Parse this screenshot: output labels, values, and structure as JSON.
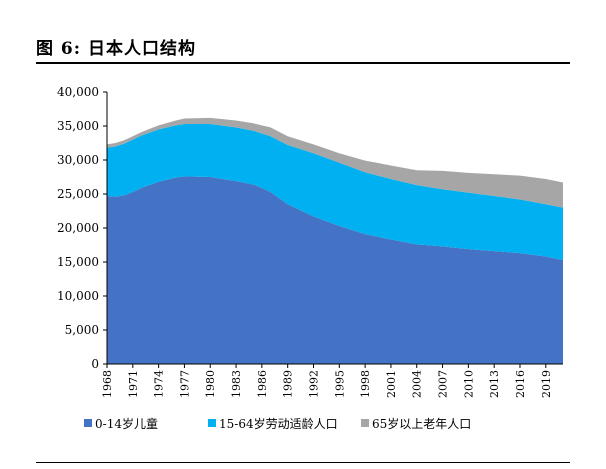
{
  "figure": {
    "title": "图 6: 日本人口结构"
  },
  "chart_data": {
    "type": "area",
    "stacked": true,
    "title": "",
    "xlabel": "",
    "ylabel": "",
    "ylim": [
      0,
      40000
    ],
    "yticks": [
      0,
      5000,
      10000,
      15000,
      20000,
      25000,
      30000,
      35000,
      40000
    ],
    "ytick_labels": [
      "0",
      "5,000",
      "10,000",
      "15,000",
      "20,000",
      "25,000",
      "30,000",
      "35,000",
      "40,000"
    ],
    "xlim": [
      1968,
      2021
    ],
    "xticks": [
      1968,
      1971,
      1974,
      1977,
      1980,
      1983,
      1986,
      1989,
      1992,
      1995,
      1998,
      2001,
      2004,
      2007,
      2010,
      2013,
      2016,
      2019
    ],
    "x": [
      1968,
      1969,
      1970,
      1971,
      1972,
      1974,
      1976,
      1977,
      1980,
      1983,
      1985,
      1986,
      1987,
      1989,
      1992,
      1995,
      1998,
      2001,
      2004,
      2007,
      2010,
      2013,
      2016,
      2019,
      2021
    ],
    "series": [
      {
        "name": "0-14岁儿童",
        "color": "#4472C4",
        "values": [
          24700,
          24600,
          24800,
          25300,
          25900,
          26800,
          27400,
          27600,
          27500,
          26900,
          26400,
          25900,
          25300,
          23500,
          21700,
          20300,
          19100,
          18300,
          17600,
          17300,
          16900,
          16600,
          16300,
          15800,
          15300
        ]
      },
      {
        "name": "15-64岁劳动适龄人口",
        "color": "#00B0F0",
        "values": [
          7100,
          7400,
          7600,
          7700,
          7700,
          7700,
          7700,
          7700,
          7800,
          7900,
          7900,
          8000,
          8200,
          8700,
          9300,
          9300,
          9100,
          8900,
          8700,
          8400,
          8300,
          8100,
          7900,
          7700,
          7700
        ]
      },
      {
        "name": "65岁以上老年人口",
        "color": "#A6A6A6",
        "values": [
          500,
          500,
          500,
          500,
          500,
          600,
          700,
          800,
          900,
          1000,
          1100,
          1200,
          1300,
          1300,
          1300,
          1400,
          1700,
          2000,
          2200,
          2700,
          2900,
          3200,
          3500,
          3700,
          3700
        ]
      }
    ],
    "grid": false,
    "legend_position": "bottom"
  }
}
